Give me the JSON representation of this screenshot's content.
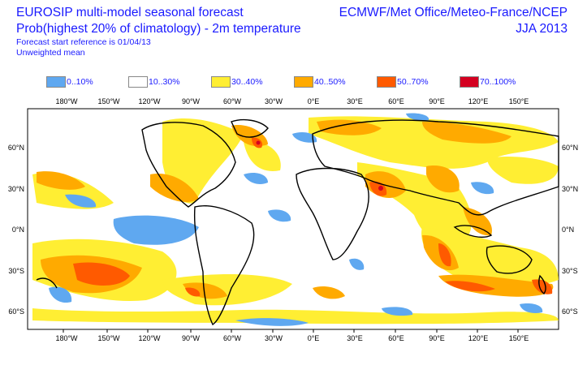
{
  "header": {
    "title_line1": "EUROSIP multi-model seasonal forecast",
    "title_line2": "Prob(highest 20% of climatology) - 2m temperature",
    "subtitle_line1": "Forecast start reference is 01/04/13",
    "subtitle_line2": "Unweighted mean",
    "centres": "ECMWF/Met Office/Meteo-France/NCEP",
    "season": "JJA 2013"
  },
  "legend": [
    {
      "label": "0..10%",
      "color": "#5fa8f0"
    },
    {
      "label": "10..30%",
      "color": "#ffffff"
    },
    {
      "label": "30..40%",
      "color": "#ffee33"
    },
    {
      "label": "40..50%",
      "color": "#ffaa00"
    },
    {
      "label": "50..70%",
      "color": "#ff5a00"
    },
    {
      "label": "70..100%",
      "color": "#d40020"
    }
  ],
  "axes": {
    "lon_ticks": [
      "180°W",
      "150°W",
      "120°W",
      "90°W",
      "60°W",
      "30°W",
      "0°E",
      "30°E",
      "60°E",
      "90°E",
      "120°E",
      "150°E"
    ],
    "lat_ticks_left": [
      "60°N",
      "30°N",
      "0°N",
      "30°S",
      "60°S"
    ],
    "lat_ticks_right": [
      "60°N",
      "30°N",
      "0°N",
      "30°S",
      "60°S"
    ]
  }
}
